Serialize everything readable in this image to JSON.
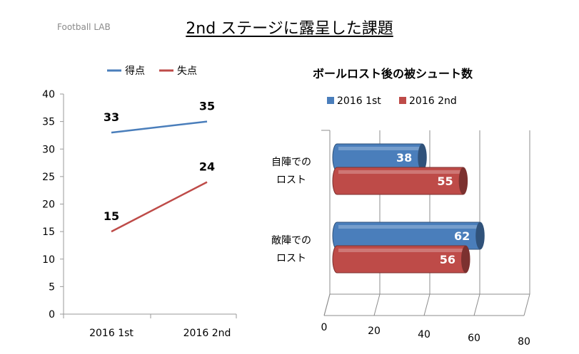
{
  "brand": "Football LAB",
  "page_title": "2nd ステージに露呈した課題",
  "colors": {
    "blue": "#4a7ebb",
    "red": "#be4b48"
  },
  "chart_data": [
    {
      "type": "line",
      "categories": [
        "2016 1st",
        "2016 2nd"
      ],
      "series": [
        {
          "name": "得点",
          "values": [
            33,
            35
          ],
          "color": "#4a7ebb"
        },
        {
          "name": "失点",
          "values": [
            15,
            24
          ],
          "color": "#be4b48"
        }
      ],
      "yticks": [
        0,
        5,
        10,
        15,
        20,
        25,
        30,
        35,
        40
      ],
      "ylim": [
        0,
        40
      ],
      "legend": "top",
      "grid": false
    },
    {
      "type": "bar",
      "orientation": "horizontal",
      "style": "3d-cylinder",
      "title": "ボールロスト後の被シュート数",
      "categories": [
        "自陣での\nロスト",
        "敵陣での\nロスト"
      ],
      "series": [
        {
          "name": "2016 1st",
          "values": [
            38,
            62
          ],
          "color": "#4a7ebb"
        },
        {
          "name": "2016 2nd",
          "values": [
            55,
            56
          ],
          "color": "#be4b48"
        }
      ],
      "xticks": [
        0,
        20,
        40,
        60,
        80
      ],
      "xlim": [
        0,
        80
      ],
      "legend": "top",
      "grid": true
    }
  ]
}
